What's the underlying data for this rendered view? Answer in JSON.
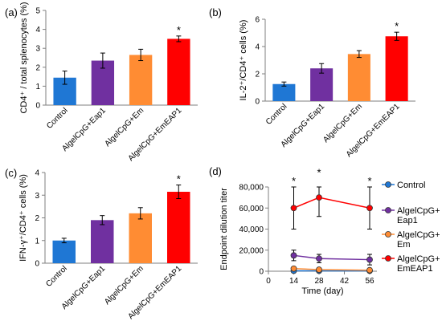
{
  "chart_data": [
    {
      "panel": "(a)",
      "type": "bar",
      "ylabel": "CD4⁺ / total splenocytes (%)",
      "ylim": [
        0,
        5
      ],
      "yticks": [
        "0",
        "1",
        "2",
        "3",
        "4",
        "5"
      ],
      "categories": [
        "Control",
        "AlgelCpG+Eap1",
        "AlgelCpG+Em",
        "AlgelCpG+EmEAP1"
      ],
      "values": [
        1.45,
        2.35,
        2.65,
        3.5
      ],
      "errors": [
        0.35,
        0.4,
        0.3,
        0.15
      ],
      "significance": [
        "",
        "",
        "",
        "*"
      ],
      "colors": [
        "#1f77d4",
        "#7030a0",
        "#ff8c33",
        "#ff0000"
      ]
    },
    {
      "panel": "(b)",
      "type": "bar",
      "ylabel": "IL-2⁺/CD4⁺ cells (%)",
      "ylim": [
        0,
        6
      ],
      "yticks": [
        "0",
        "2",
        "4",
        "6"
      ],
      "categories": [
        "Control",
        "AlgelCpG+Eap1",
        "AlgelCpG+Em",
        "AlgelCpG+EmEAP1"
      ],
      "values": [
        1.25,
        2.4,
        3.45,
        4.75
      ],
      "errors": [
        0.15,
        0.35,
        0.25,
        0.3
      ],
      "significance": [
        "",
        "",
        "",
        "*"
      ],
      "colors": [
        "#1f77d4",
        "#7030a0",
        "#ff8c33",
        "#ff0000"
      ]
    },
    {
      "panel": "(c)",
      "type": "bar",
      "ylabel": "IFN-γ⁺/CD4⁺ cells (%)",
      "ylim": [
        0,
        4
      ],
      "yticks": [
        "0",
        "1",
        "2",
        "3",
        "4"
      ],
      "categories": [
        "Control",
        "AlgelCpG+Eap1",
        "AlgelCpG+Em",
        "AlgelCpG+EmEAP1"
      ],
      "values": [
        1.0,
        1.9,
        2.2,
        3.15
      ],
      "errors": [
        0.1,
        0.2,
        0.25,
        0.3
      ],
      "significance": [
        "",
        "",
        "",
        "*"
      ],
      "colors": [
        "#1f77d4",
        "#7030a0",
        "#ff8c33",
        "#ff0000"
      ]
    },
    {
      "panel": "(d)",
      "type": "line",
      "xlabel": "Time (day)",
      "ylabel": "Endpoint dilution titer",
      "xlim": [
        0,
        60
      ],
      "xticks": [
        "0",
        "14",
        "28",
        "42",
        "56"
      ],
      "ylim": [
        0,
        80000
      ],
      "yticks": [
        "0",
        "20,000",
        "40,000",
        "60,000",
        "80,000"
      ],
      "x": [
        14,
        28,
        56
      ],
      "significance_x": [
        14,
        28,
        56
      ],
      "significance": [
        "*",
        "*",
        "*"
      ],
      "legend_position": "right",
      "series": [
        {
          "name": "Control",
          "values": [
            400,
            400,
            400
          ],
          "errors": [
            200,
            200,
            200
          ],
          "color": "#1f77d4"
        },
        {
          "name": "AlgelCpG+ Eap1",
          "values": [
            15000,
            12000,
            11000
          ],
          "errors": [
            5000,
            4000,
            5000
          ],
          "color": "#7030a0"
        },
        {
          "name": "AlgelCpG+ Em",
          "values": [
            2500,
            1500,
            1000
          ],
          "errors": [
            1500,
            1000,
            800
          ],
          "color": "#ff8c33"
        },
        {
          "name": "AlgelCpG+ EmEAP1",
          "values": [
            60000,
            70000,
            60000
          ],
          "errors": [
            20000,
            18000,
            20000
          ],
          "color": "#ff0000"
        }
      ]
    }
  ]
}
